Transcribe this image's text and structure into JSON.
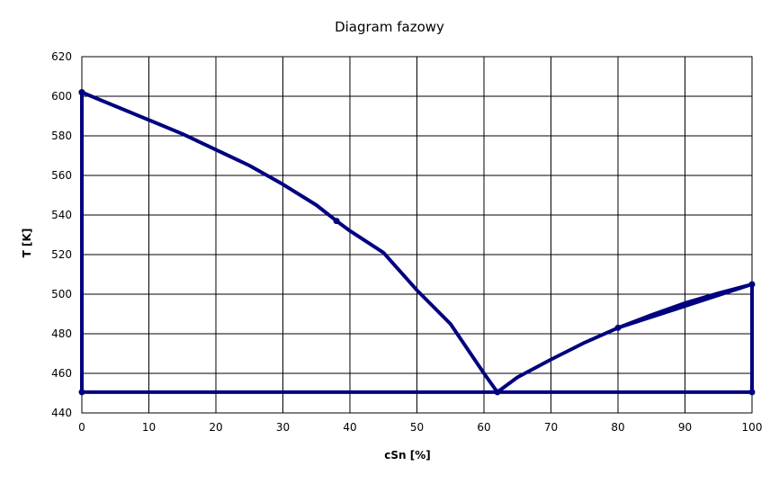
{
  "chart_data": {
    "type": "line",
    "title": "Diagram fazowy",
    "xlabel": "cSn [%]",
    "ylabel": "T [K]",
    "xlim": [
      0,
      100
    ],
    "ylim": [
      440,
      620
    ],
    "x_ticks": [
      0,
      10,
      20,
      30,
      40,
      50,
      60,
      70,
      80,
      90,
      100
    ],
    "y_ticks": [
      440,
      460,
      480,
      500,
      520,
      540,
      560,
      580,
      600,
      620
    ],
    "grid": true,
    "legend": "none",
    "color": "#000080",
    "series": [
      {
        "markers": true,
        "values": [
          [
            0,
            602
          ],
          [
            0,
            450.5
          ],
          [
            100,
            450.5
          ],
          [
            100,
            505
          ],
          [
            80,
            483
          ],
          [
            62,
            450.5
          ],
          [
            38,
            537
          ],
          [
            0,
            602
          ]
        ]
      }
    ],
    "curve_shapes": {
      "left_liquidus": [
        [
          0,
          602
        ],
        [
          5,
          595
        ],
        [
          10,
          588
        ],
        [
          15,
          581
        ],
        [
          20,
          573
        ],
        [
          25,
          565
        ],
        [
          30,
          555.5
        ],
        [
          35,
          545
        ],
        [
          38,
          537
        ],
        [
          40,
          532
        ],
        [
          45,
          521
        ],
        [
          50,
          502
        ],
        [
          55,
          485
        ],
        [
          60,
          460
        ],
        [
          62,
          450.5
        ]
      ],
      "right_liquidus": [
        [
          62,
          450.5
        ],
        [
          65,
          458
        ],
        [
          70,
          467
        ],
        [
          75,
          475.5
        ],
        [
          80,
          483
        ],
        [
          85,
          489.5
        ],
        [
          90,
          495.5
        ],
        [
          95,
          500.5
        ],
        [
          100,
          505
        ]
      ]
    }
  }
}
